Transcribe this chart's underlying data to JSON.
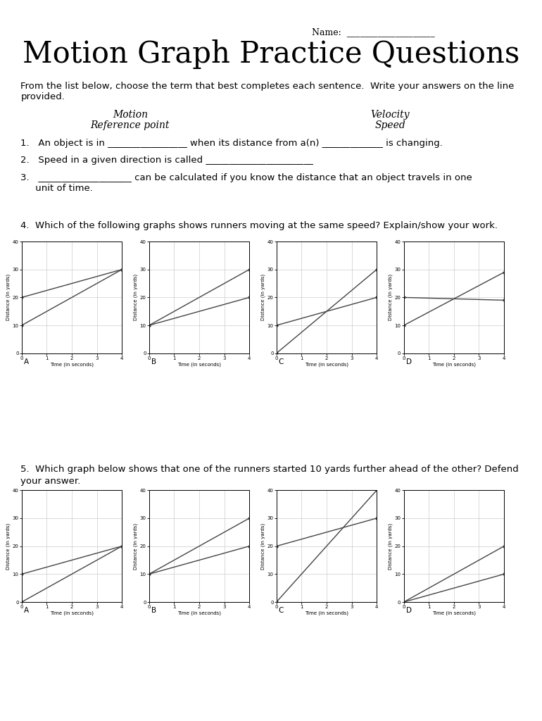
{
  "title": "Motion Graph Practice Questions",
  "name_label": "Name:  ____________________",
  "intro_text_1": "From the list below, choose the term that best completes each sentence.  Write your answers on the line",
  "intro_text_2": "provided.",
  "vocab_left_1": "Motion",
  "vocab_left_2": "Reference point",
  "vocab_right_1": "Velocity",
  "vocab_right_2": "Speed",
  "q1": "1.   An object is in _________________ when its distance from a(n) _____________ is changing.",
  "q2": "2.   Speed in a given direction is called _______________________",
  "q3a": "3.   ____________________ can be calculated if you know the distance that an object travels in one",
  "q3b": "     unit of time.",
  "q4_text": "4.  Which of the following graphs shows runners moving at the same speed? Explain/show your work.",
  "q5_text_1": "5.  Which graph below shows that one of the runners started 10 yards further ahead of the other? Defend",
  "q5_text_2": "your answer.",
  "q4_graphs": [
    {
      "label": "A",
      "lines": [
        {
          "x": [
            0,
            4
          ],
          "y": [
            10,
            30
          ]
        },
        {
          "x": [
            0,
            4
          ],
          "y": [
            20,
            30
          ]
        }
      ]
    },
    {
      "label": "B",
      "lines": [
        {
          "x": [
            0,
            4
          ],
          "y": [
            10,
            30
          ]
        },
        {
          "x": [
            0,
            4
          ],
          "y": [
            10,
            20
          ]
        }
      ]
    },
    {
      "label": "C",
      "lines": [
        {
          "x": [
            0,
            4
          ],
          "y": [
            0,
            30
          ]
        },
        {
          "x": [
            0,
            4
          ],
          "y": [
            10,
            20
          ]
        }
      ]
    },
    {
      "label": "D",
      "lines": [
        {
          "x": [
            0,
            4
          ],
          "y": [
            10,
            29
          ]
        },
        {
          "x": [
            0,
            4
          ],
          "y": [
            20,
            19
          ]
        }
      ]
    }
  ],
  "q5_graphs": [
    {
      "label": "A",
      "lines": [
        {
          "x": [
            0,
            4
          ],
          "y": [
            0,
            20
          ]
        },
        {
          "x": [
            0,
            4
          ],
          "y": [
            10,
            20
          ]
        }
      ]
    },
    {
      "label": "B",
      "lines": [
        {
          "x": [
            0,
            4
          ],
          "y": [
            10,
            30
          ]
        },
        {
          "x": [
            0,
            4
          ],
          "y": [
            10,
            20
          ]
        }
      ]
    },
    {
      "label": "C",
      "lines": [
        {
          "x": [
            0,
            4
          ],
          "y": [
            0,
            40
          ]
        },
        {
          "x": [
            0,
            4
          ],
          "y": [
            20,
            30
          ]
        }
      ]
    },
    {
      "label": "D",
      "lines": [
        {
          "x": [
            0,
            4
          ],
          "y": [
            0,
            20
          ]
        },
        {
          "x": [
            0,
            4
          ],
          "y": [
            0,
            10
          ]
        }
      ]
    }
  ],
  "bg_color": "#ffffff",
  "line_color": "#444444",
  "grid_color": "#cccccc",
  "axis_color": "#000000",
  "xlabel": "Time (in seconds)",
  "ylabel": "Distance (in yards)",
  "xlim": [
    0,
    4
  ],
  "ylim": [
    0,
    40
  ],
  "xticks": [
    0,
    1,
    2,
    3,
    4
  ],
  "yticks": [
    0,
    10,
    20,
    30,
    40
  ]
}
